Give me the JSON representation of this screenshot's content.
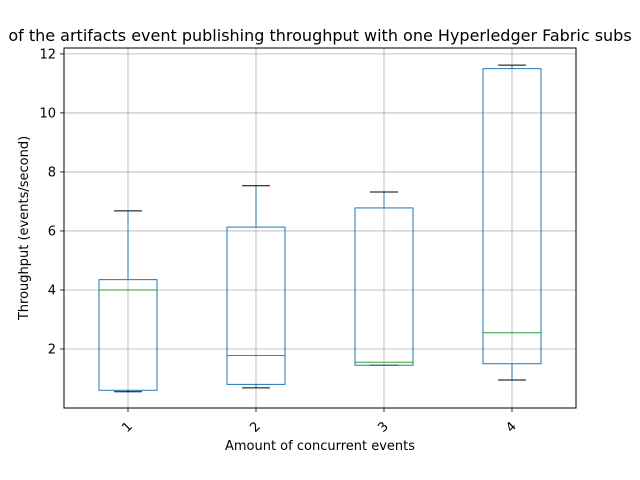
{
  "chart_data": {
    "type": "box",
    "title": "of the artifacts event publishing throughput with one Hyperledger Fabric subs",
    "xlabel": "Amount of concurrent events",
    "ylabel": "Throughput (events/second)",
    "categories": [
      "1",
      "2",
      "3",
      "4"
    ],
    "ylim": [
      0,
      12.2
    ],
    "yticks": [
      2,
      4,
      6,
      8,
      10,
      12
    ],
    "grid": true,
    "boxes": [
      {
        "category": "1",
        "whisker_low": 0.55,
        "q1": 0.6,
        "median": 4.0,
        "q3": 4.35,
        "whisker_high": 6.68
      },
      {
        "category": "2",
        "whisker_low": 0.68,
        "q1": 0.8,
        "median": 1.78,
        "q3": 6.13,
        "whisker_high": 7.53
      },
      {
        "category": "3",
        "whisker_low": 1.45,
        "q1": 1.45,
        "median": 1.55,
        "q3": 6.78,
        "whisker_high": 7.32
      },
      {
        "category": "4",
        "whisker_low": 0.95,
        "q1": 1.5,
        "median": 2.55,
        "q3": 11.5,
        "whisker_high": 11.62
      }
    ],
    "colors": {
      "box": "#1f77b4",
      "median": "#2ca02c",
      "whisker_cap": "#000000",
      "grid": "#b0b0b0",
      "axis": "#000000"
    }
  }
}
